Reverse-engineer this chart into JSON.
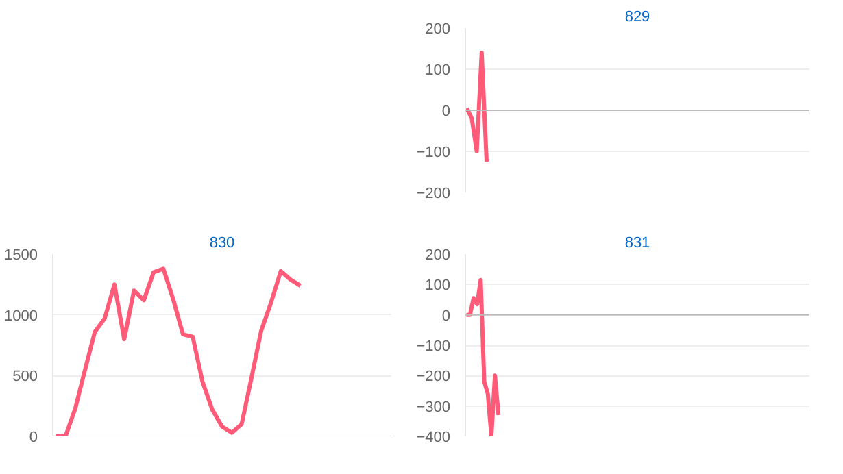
{
  "chart_data": [
    {
      "type": "line",
      "title": "829",
      "categories": [
        null,
        null,
        null,
        null,
        null,
        null,
        null,
        null,
        null,
        null,
        null,
        null,
        null,
        null,
        null,
        null,
        null,
        null,
        null,
        null,
        null,
        null,
        null,
        null,
        null,
        null,
        null,
        null,
        null,
        null,
        null,
        null,
        null,
        null,
        null,
        null,
        null,
        null,
        null,
        null,
        null,
        null,
        null,
        null,
        null,
        null,
        null,
        null,
        null,
        null,
        null,
        null,
        null,
        null,
        null,
        null,
        null,
        null,
        null,
        null,
        null,
        null,
        null,
        null,
        null,
        null,
        null,
        null,
        null,
        null
      ],
      "series": [
        {
          "color": "#ff5a78",
          "values": [
            5,
            -20,
            -100,
            140,
            -125,
            null,
            null,
            null,
            null,
            null,
            null,
            null,
            null,
            null,
            null,
            null,
            null,
            null,
            null,
            null,
            null,
            null,
            null,
            null,
            null,
            null,
            null,
            null,
            null,
            null,
            null,
            null,
            null,
            null,
            null,
            null,
            null,
            null,
            null,
            null,
            null,
            null,
            null,
            null,
            null,
            null,
            null,
            null,
            null,
            null,
            null,
            null,
            null,
            null,
            null,
            null,
            null,
            null,
            null,
            null,
            null,
            null,
            null,
            null,
            null,
            null,
            null,
            null,
            null,
            null
          ]
        }
      ],
      "ylim": [
        -200,
        200
      ],
      "yticks": [
        -200,
        -100,
        0,
        100,
        200
      ],
      "tick_labels": "y",
      "grid": "y",
      "ref_lines": [
        {
          "axis": "y",
          "value": 0,
          "color": "#bbbbbb"
        }
      ]
    },
    {
      "type": "line",
      "title": "830",
      "categories": [
        null,
        null,
        null,
        null,
        null,
        null,
        null,
        null,
        null,
        null,
        null,
        null,
        null,
        null,
        null,
        null,
        null,
        null,
        null,
        null,
        null,
        null,
        null,
        null,
        null,
        null,
        null,
        null,
        null,
        null,
        null,
        null,
        null,
        null,
        null
      ],
      "series": [
        {
          "color": "#ff5a78",
          "values": [
            0,
            0,
            230,
            550,
            860,
            970,
            1250,
            800,
            1200,
            1120,
            1350,
            1380,
            1130,
            840,
            820,
            450,
            220,
            80,
            30,
            100,
            480,
            870,
            1100,
            1360,
            1290,
            1240,
            null,
            null,
            null,
            null,
            null,
            null,
            null,
            null,
            null
          ]
        }
      ],
      "ylim": [
        0,
        1500
      ],
      "yticks": [
        0,
        500,
        1000,
        1500
      ],
      "tick_labels": "y",
      "grid": "y",
      "ref_lines": [
        {
          "axis": "y",
          "value": 0,
          "color": "#bbbbbb"
        }
      ]
    },
    {
      "type": "line",
      "title": "831",
      "categories": [
        null,
        null,
        null,
        null,
        null,
        null,
        null,
        null,
        null,
        null,
        null,
        null,
        null,
        null,
        null,
        null,
        null,
        null,
        null,
        null,
        null,
        null,
        null,
        null,
        null,
        null,
        null,
        null,
        null,
        null,
        null,
        null,
        null,
        null,
        null,
        null,
        null,
        null,
        null,
        null,
        null,
        null,
        null,
        null,
        null,
        null,
        null,
        null,
        null,
        null,
        null,
        null,
        null,
        null,
        null,
        null,
        null,
        null,
        null,
        null,
        null,
        null,
        null,
        null,
        null,
        null,
        null,
        null,
        null,
        null,
        null,
        null,
        null,
        null,
        null,
        null,
        null,
        null,
        null,
        null,
        null,
        null,
        null,
        null,
        null,
        null,
        null,
        null,
        null,
        null,
        null,
        null,
        null,
        null,
        null,
        null,
        null
      ],
      "series": [
        {
          "color": "#ff5a78",
          "values": [
            0,
            0,
            55,
            35,
            115,
            -220,
            -260,
            -400,
            -200,
            -330,
            null,
            null,
            null,
            null,
            null,
            null,
            null,
            null,
            null,
            null,
            null,
            null,
            null,
            null,
            null,
            null,
            null,
            null,
            null,
            null,
            null,
            null,
            null,
            null,
            null,
            null,
            null,
            null,
            null,
            null,
            null,
            null,
            null,
            null,
            null,
            null,
            null,
            null,
            null,
            null,
            null,
            null,
            null,
            null,
            null,
            null,
            null,
            null,
            null,
            null,
            null,
            null,
            null,
            null,
            null,
            null,
            null,
            null,
            null,
            null,
            null,
            null,
            null,
            null,
            null,
            null,
            null,
            null,
            null,
            null,
            null,
            null,
            null,
            null,
            null,
            null,
            null,
            null,
            null,
            null,
            null,
            null,
            null,
            null,
            null,
            null,
            null
          ]
        }
      ],
      "ylim": [
        -400,
        200
      ],
      "yticks": [
        -400,
        -300,
        -200,
        -100,
        0,
        100,
        200
      ],
      "tick_labels": "y",
      "grid": "y",
      "ref_lines": [
        {
          "axis": "y",
          "value": 0,
          "color": "#bbbbbb"
        }
      ]
    }
  ]
}
